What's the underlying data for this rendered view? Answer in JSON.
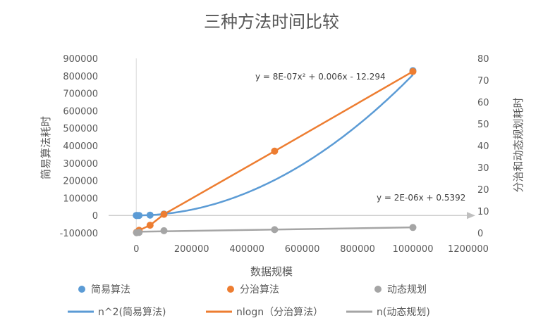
{
  "chart_data": {
    "type": "scatter",
    "title": "三种方法时间比较",
    "xlabel": "数据规模",
    "ylabel": "简易算法耗时",
    "y2label": "分治和动态规划耗时",
    "xlim": [
      -100000,
      1200000
    ],
    "ylim": [
      -100000,
      900000
    ],
    "y2lim": [
      0,
      80
    ],
    "x_ticks": [
      "0",
      "200000",
      "400000",
      "600000",
      "800000",
      "1000000",
      "1200000"
    ],
    "y_ticks": [
      "-100000",
      "0",
      "100000",
      "200000",
      "300000",
      "400000",
      "500000",
      "600000",
      "700000",
      "800000",
      "900000"
    ],
    "y2_ticks": [
      "0",
      "10",
      "20",
      "30",
      "40",
      "50",
      "60",
      "70",
      "80"
    ],
    "grid": false,
    "legend": "bottom",
    "colors": {
      "blue": "#5B9BD5",
      "orange": "#ED7D31",
      "gray": "#A5A5A5"
    },
    "series": [
      {
        "name": "简易算法",
        "kind": "scatter",
        "axis": "left",
        "color": "#5B9BD5",
        "points": [
          [
            0,
            0
          ],
          [
            1000,
            1
          ],
          [
            5000,
            20
          ],
          [
            10000,
            80
          ],
          [
            50000,
            2000
          ],
          [
            100000,
            8000
          ],
          [
            1000000,
            830000
          ]
        ]
      },
      {
        "name": "分治算法",
        "kind": "scatter",
        "axis": "right",
        "color": "#ED7D31",
        "points": [
          [
            1000,
            0.3
          ],
          [
            10000,
            1.2
          ],
          [
            50000,
            3.5
          ],
          [
            100000,
            8.5
          ],
          [
            500000,
            37.5
          ],
          [
            1000000,
            74
          ]
        ]
      },
      {
        "name": "动态规划",
        "kind": "scatter",
        "axis": "right",
        "color": "#A5A5A5",
        "points": [
          [
            1000,
            0.1
          ],
          [
            10000,
            0.2
          ],
          [
            100000,
            1
          ],
          [
            500000,
            1.5
          ],
          [
            1000000,
            2.5
          ]
        ]
      }
    ],
    "legend_lines": [
      {
        "name": "n^2(简易算法)",
        "color": "#5B9BD5"
      },
      {
        "name": "nlogn（分治算法）",
        "color": "#ED7D31"
      },
      {
        "name": "n(动态规划)",
        "color": "#A5A5A5"
      }
    ],
    "trendlines": [
      {
        "series": "简易算法",
        "type": "poly2",
        "a": 8e-07,
        "b": 0.006,
        "c": -12.294,
        "equation": "y = 8E-07x² + 0.006x - 12.294"
      },
      {
        "series": "动态规划",
        "type": "linear",
        "m": 2e-06,
        "c": 0.5392,
        "equation": "y = 2E-06x + 0.5392"
      }
    ]
  }
}
